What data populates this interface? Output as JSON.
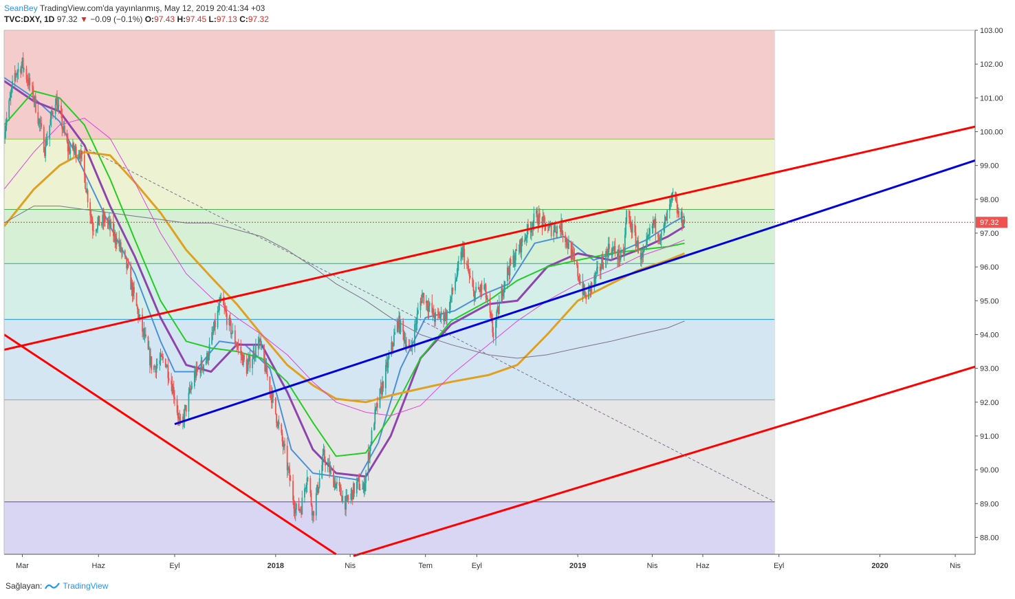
{
  "header": {
    "author": "SeanBey",
    "published": "TradingView.com'da yayınlanmış, May 12, 2019 20:41:34 +03",
    "symbol": "TVC:DXY, 1D",
    "last": "97.32",
    "down_arrow": "▼",
    "change": "−0.09 (−0.1%)",
    "o_label": "O:",
    "o_val": "97.43",
    "h_label": "H:",
    "h_val": "97.45",
    "l_label": "L:",
    "l_val": "97.13",
    "c_label": "C:",
    "c_val": "97.32"
  },
  "footer": {
    "provider_label": "Sağlayan:",
    "brand": "TradingView",
    "logo_icon": "tradingview-logo-icon"
  },
  "colors": {
    "bull": "#26a69a",
    "bear": "#ef5350",
    "trend_red": "#ff0000",
    "trend_blue": "#0000dd",
    "ma_blue": "#4a90d9",
    "ma_purple": "#8e44ad",
    "ma_green": "#22cc22",
    "ma_orange": "#e0a020",
    "ma_magenta": "#e040e0",
    "ma_gray": "#7d6f8a"
  },
  "chart_data": {
    "type": "candlestick",
    "symbol": "TVC:DXY",
    "interval": "1D",
    "ylim": [
      87.5,
      103.0
    ],
    "xlim": [
      "2017-02-07",
      "2020-04-25"
    ],
    "last_price": 97.32,
    "y_ticks": [
      "103.00",
      "102.00",
      "101.00",
      "100.00",
      "99.00",
      "98.00",
      "97.00",
      "96.00",
      "95.00",
      "94.00",
      "93.00",
      "92.00",
      "91.00",
      "90.00",
      "89.00",
      "88.00"
    ],
    "y_tick_values": [
      103,
      102,
      101,
      100,
      99,
      98,
      97,
      96,
      95,
      94,
      93,
      92,
      91,
      90,
      89,
      88
    ],
    "x_ticks": [
      {
        "label": "Mar",
        "date": "2017-03-01",
        "bold": false
      },
      {
        "label": "Haz",
        "date": "2017-06-01",
        "bold": false
      },
      {
        "label": "Eyl",
        "date": "2017-09-01",
        "bold": false
      },
      {
        "label": "2018",
        "date": "2018-01-01",
        "bold": true
      },
      {
        "label": "Nis",
        "date": "2018-04-01",
        "bold": false
      },
      {
        "label": "Tem",
        "date": "2018-07-01",
        "bold": false
      },
      {
        "label": "Eyl",
        "date": "2018-09-01",
        "bold": false
      },
      {
        "label": "2019",
        "date": "2019-01-01",
        "bold": true
      },
      {
        "label": "Nis",
        "date": "2019-04-01",
        "bold": false
      },
      {
        "label": "Haz",
        "date": "2019-06-01",
        "bold": false
      },
      {
        "label": "Eyl",
        "date": "2019-09-01",
        "bold": false
      },
      {
        "label": "2020",
        "date": "2020-01-01",
        "bold": true
      },
      {
        "label": "Nis",
        "date": "2020-04-01",
        "bold": false
      }
    ],
    "price_path": [
      [
        "2017-02-07",
        100.0
      ],
      [
        "2017-02-20",
        101.7
      ],
      [
        "2017-03-01",
        102.0
      ],
      [
        "2017-03-15",
        101.0
      ],
      [
        "2017-03-28",
        99.5
      ],
      [
        "2017-04-10",
        101.0
      ],
      [
        "2017-04-25",
        99.5
      ],
      [
        "2017-05-10",
        99.4
      ],
      [
        "2017-05-25",
        97.2
      ],
      [
        "2017-06-10",
        97.4
      ],
      [
        "2017-06-25",
        96.7
      ],
      [
        "2017-07-05",
        96.0
      ],
      [
        "2017-07-20",
        94.5
      ],
      [
        "2017-08-05",
        93.0
      ],
      [
        "2017-08-20",
        93.3
      ],
      [
        "2017-09-01",
        92.2
      ],
      [
        "2017-09-08",
        91.2
      ],
      [
        "2017-09-25",
        92.8
      ],
      [
        "2017-10-10",
        93.3
      ],
      [
        "2017-10-27",
        95.0
      ],
      [
        "2017-11-10",
        94.0
      ],
      [
        "2017-11-27",
        93.0
      ],
      [
        "2017-12-12",
        93.8
      ],
      [
        "2017-12-27",
        92.2
      ],
      [
        "2018-01-12",
        90.5
      ],
      [
        "2018-01-25",
        88.8
      ],
      [
        "2018-02-01",
        88.9
      ],
      [
        "2018-02-08",
        89.9
      ],
      [
        "2018-02-15",
        88.7
      ],
      [
        "2018-02-28",
        90.4
      ],
      [
        "2018-03-12",
        89.7
      ],
      [
        "2018-03-27",
        89.0
      ],
      [
        "2018-04-10",
        89.6
      ],
      [
        "2018-04-17",
        89.4
      ],
      [
        "2018-04-30",
        91.5
      ],
      [
        "2018-05-15",
        93.0
      ],
      [
        "2018-05-29",
        94.4
      ],
      [
        "2018-06-12",
        93.5
      ],
      [
        "2018-06-27",
        95.2
      ],
      [
        "2018-07-12",
        94.5
      ],
      [
        "2018-07-27",
        94.6
      ],
      [
        "2018-08-15",
        96.5
      ],
      [
        "2018-08-28",
        95.2
      ],
      [
        "2018-09-10",
        95.4
      ],
      [
        "2018-09-21",
        94.0
      ],
      [
        "2018-10-05",
        95.7
      ],
      [
        "2018-10-31",
        97.0
      ],
      [
        "2018-11-12",
        97.5
      ],
      [
        "2018-11-27",
        97.1
      ],
      [
        "2018-12-12",
        97.2
      ],
      [
        "2018-12-27",
        96.2
      ],
      [
        "2019-01-10",
        95.1
      ],
      [
        "2019-01-25",
        95.8
      ],
      [
        "2019-02-08",
        96.6
      ],
      [
        "2019-02-25",
        96.2
      ],
      [
        "2019-03-01",
        97.6
      ],
      [
        "2019-03-20",
        96.2
      ],
      [
        "2019-04-02",
        97.3
      ],
      [
        "2019-04-12",
        96.9
      ],
      [
        "2019-04-26",
        98.1
      ],
      [
        "2019-05-03",
        97.5
      ],
      [
        "2019-05-10",
        97.32
      ]
    ],
    "moving_averages": [
      {
        "color_key": "ma_blue",
        "width": 2,
        "points": [
          [
            "2017-02-07",
            101.6
          ],
          [
            "2017-03-15",
            101.0
          ],
          [
            "2017-04-15",
            100.3
          ],
          [
            "2017-05-15",
            98.8
          ],
          [
            "2017-06-15",
            97.2
          ],
          [
            "2017-07-15",
            95.8
          ],
          [
            "2017-08-15",
            93.8
          ],
          [
            "2017-09-01",
            92.9
          ],
          [
            "2017-09-25",
            92.9
          ],
          [
            "2017-10-25",
            93.8
          ],
          [
            "2017-11-25",
            93.7
          ],
          [
            "2017-12-25",
            93.0
          ],
          [
            "2018-01-20",
            90.6
          ],
          [
            "2018-02-15",
            89.9
          ],
          [
            "2018-03-15",
            89.8
          ],
          [
            "2018-04-10",
            89.7
          ],
          [
            "2018-05-05",
            90.8
          ],
          [
            "2018-06-01",
            93.0
          ],
          [
            "2018-07-01",
            94.5
          ],
          [
            "2018-08-05",
            94.7
          ],
          [
            "2018-09-10",
            95.2
          ],
          [
            "2018-10-10",
            95.5
          ],
          [
            "2018-11-10",
            96.7
          ],
          [
            "2018-12-15",
            96.9
          ],
          [
            "2019-01-20",
            96.2
          ],
          [
            "2019-02-25",
            96.5
          ],
          [
            "2019-03-25",
            96.8
          ],
          [
            "2019-04-25",
            97.3
          ],
          [
            "2019-05-10",
            97.5
          ]
        ]
      },
      {
        "color_key": "ma_purple",
        "width": 3,
        "points": [
          [
            "2017-02-07",
            101.5
          ],
          [
            "2017-03-15",
            100.9
          ],
          [
            "2017-04-15",
            100.6
          ],
          [
            "2017-05-15",
            99.6
          ],
          [
            "2017-06-15",
            97.8
          ],
          [
            "2017-07-15",
            96.3
          ],
          [
            "2017-08-15",
            94.5
          ],
          [
            "2017-09-15",
            93.1
          ],
          [
            "2017-10-15",
            92.9
          ],
          [
            "2017-11-15",
            93.7
          ],
          [
            "2017-12-15",
            93.7
          ],
          [
            "2018-01-15",
            92.3
          ],
          [
            "2018-02-15",
            90.6
          ],
          [
            "2018-03-15",
            89.9
          ],
          [
            "2018-04-20",
            89.8
          ],
          [
            "2018-05-20",
            91.0
          ],
          [
            "2018-06-25",
            93.3
          ],
          [
            "2018-08-01",
            94.3
          ],
          [
            "2018-09-15",
            94.9
          ],
          [
            "2018-10-20",
            95.0
          ],
          [
            "2018-11-25",
            96.0
          ],
          [
            "2019-01-01",
            96.4
          ],
          [
            "2019-02-10",
            96.2
          ],
          [
            "2019-03-15",
            96.5
          ],
          [
            "2019-04-20",
            96.9
          ],
          [
            "2019-05-10",
            97.2
          ]
        ]
      },
      {
        "color_key": "ma_green",
        "width": 2,
        "points": [
          [
            "2017-02-07",
            100.2
          ],
          [
            "2017-03-15",
            101.2
          ],
          [
            "2017-04-15",
            101.0
          ],
          [
            "2017-05-15",
            100.2
          ],
          [
            "2017-06-15",
            98.6
          ],
          [
            "2017-07-15",
            96.8
          ],
          [
            "2017-08-15",
            95.0
          ],
          [
            "2017-09-15",
            93.8
          ],
          [
            "2017-10-15",
            93.6
          ],
          [
            "2017-11-15",
            93.5
          ],
          [
            "2017-12-15",
            93.3
          ],
          [
            "2018-01-15",
            92.6
          ],
          [
            "2018-02-15",
            91.4
          ],
          [
            "2018-03-15",
            90.4
          ],
          [
            "2018-04-20",
            90.5
          ],
          [
            "2018-05-20",
            91.6
          ],
          [
            "2018-06-25",
            93.3
          ],
          [
            "2018-08-01",
            94.4
          ],
          [
            "2018-09-15",
            95.0
          ],
          [
            "2018-10-20",
            95.6
          ],
          [
            "2018-11-25",
            96.0
          ],
          [
            "2019-01-01",
            96.2
          ],
          [
            "2019-02-10",
            96.4
          ],
          [
            "2019-03-15",
            96.5
          ],
          [
            "2019-04-20",
            96.6
          ],
          [
            "2019-05-10",
            96.7
          ]
        ]
      },
      {
        "color_key": "ma_orange",
        "width": 3,
        "points": [
          [
            "2017-02-07",
            97.2
          ],
          [
            "2017-03-15",
            98.3
          ],
          [
            "2017-04-15",
            99.0
          ],
          [
            "2017-05-15",
            99.4
          ],
          [
            "2017-06-15",
            99.3
          ],
          [
            "2017-07-15",
            98.5
          ],
          [
            "2017-08-15",
            97.6
          ],
          [
            "2017-09-15",
            96.5
          ],
          [
            "2017-10-15",
            95.7
          ],
          [
            "2017-11-15",
            94.9
          ],
          [
            "2017-12-15",
            94.0
          ],
          [
            "2018-01-15",
            93.1
          ],
          [
            "2018-02-15",
            92.5
          ],
          [
            "2018-03-15",
            92.1
          ],
          [
            "2018-04-20",
            92.0
          ],
          [
            "2018-05-20",
            92.2
          ],
          [
            "2018-06-25",
            92.4
          ],
          [
            "2018-08-01",
            92.6
          ],
          [
            "2018-09-15",
            92.8
          ],
          [
            "2018-10-20",
            93.1
          ],
          [
            "2018-11-25",
            94.0
          ],
          [
            "2019-01-01",
            95.0
          ],
          [
            "2019-02-10",
            95.5
          ],
          [
            "2019-03-15",
            95.9
          ],
          [
            "2019-04-20",
            96.2
          ],
          [
            "2019-05-10",
            96.4
          ]
        ]
      },
      {
        "color_key": "ma_magenta",
        "width": 1,
        "points": [
          [
            "2017-02-07",
            98.3
          ],
          [
            "2017-03-15",
            99.4
          ],
          [
            "2017-04-15",
            100.2
          ],
          [
            "2017-05-15",
            100.4
          ],
          [
            "2017-06-15",
            99.8
          ],
          [
            "2017-07-15",
            98.5
          ],
          [
            "2017-08-15",
            97.0
          ],
          [
            "2017-09-15",
            95.8
          ],
          [
            "2017-10-15",
            95.1
          ],
          [
            "2017-11-15",
            94.5
          ],
          [
            "2017-12-15",
            94.0
          ],
          [
            "2018-01-15",
            93.4
          ],
          [
            "2018-02-15",
            92.6
          ],
          [
            "2018-03-15",
            92.0
          ],
          [
            "2018-04-20",
            91.7
          ],
          [
            "2018-05-20",
            91.6
          ],
          [
            "2018-06-25",
            91.9
          ],
          [
            "2018-08-01",
            92.8
          ],
          [
            "2018-09-15",
            93.7
          ],
          [
            "2018-10-20",
            94.4
          ],
          [
            "2018-11-25",
            95.0
          ],
          [
            "2019-01-01",
            95.5
          ],
          [
            "2019-02-10",
            95.9
          ],
          [
            "2019-03-15",
            96.3
          ],
          [
            "2019-04-20",
            96.6
          ],
          [
            "2019-05-10",
            96.8
          ]
        ]
      },
      {
        "color_key": "ma_gray",
        "width": 1,
        "points": [
          [
            "2017-02-07",
            97.3
          ],
          [
            "2017-03-15",
            97.8
          ],
          [
            "2017-04-15",
            97.8
          ],
          [
            "2017-05-15",
            97.7
          ],
          [
            "2017-06-15",
            97.6
          ],
          [
            "2017-07-15",
            97.5
          ],
          [
            "2017-08-15",
            97.4
          ],
          [
            "2017-09-15",
            97.3
          ],
          [
            "2017-10-15",
            97.3
          ],
          [
            "2017-11-15",
            97.1
          ],
          [
            "2017-12-15",
            96.9
          ],
          [
            "2018-01-15",
            96.5
          ],
          [
            "2018-02-15",
            96.0
          ],
          [
            "2018-03-15",
            95.5
          ],
          [
            "2018-04-20",
            95.0
          ],
          [
            "2018-05-20",
            94.5
          ],
          [
            "2018-06-25",
            94.0
          ],
          [
            "2018-08-01",
            93.7
          ],
          [
            "2018-09-15",
            93.4
          ],
          [
            "2018-10-20",
            93.3
          ],
          [
            "2018-11-25",
            93.4
          ],
          [
            "2019-01-01",
            93.6
          ],
          [
            "2019-02-10",
            93.8
          ],
          [
            "2019-03-15",
            94.0
          ],
          [
            "2019-04-20",
            94.2
          ],
          [
            "2019-05-10",
            94.4
          ]
        ]
      }
    ],
    "fib_bands": [
      {
        "from": 99.78,
        "to": 103.0,
        "color": "#f4cccc",
        "line": "#c0392b"
      },
      {
        "from": 97.7,
        "to": 99.78,
        "color": "#edf2d2",
        "line": "#8bc34a"
      },
      {
        "from": 96.1,
        "to": 97.7,
        "color": "#d5f0d5",
        "line": "#4caf50"
      },
      {
        "from": 94.45,
        "to": 96.1,
        "color": "#d3efe8",
        "line": "#26a69a"
      },
      {
        "from": 92.07,
        "to": 94.45,
        "color": "#d5e6f3",
        "line": "#2196f3"
      },
      {
        "from": 89.05,
        "to": 92.07,
        "color": "#e6e6e6",
        "line": "#9e9e9e"
      },
      {
        "from": 87.5,
        "to": 89.05,
        "color": "#d8d6f3",
        "line": "#673ab7"
      }
    ],
    "fib_end_date": "2019-08-27",
    "trend_lines": [
      {
        "color_key": "trend_red",
        "width": 3,
        "from": [
          "2017-02-07",
          93.55
        ],
        "to": [
          "2020-04-25",
          100.15
        ]
      },
      {
        "color_key": "trend_red",
        "width": 3,
        "from": [
          "2018-04-05",
          87.45
        ],
        "to": [
          "2020-04-25",
          93.05
        ]
      },
      {
        "color_key": "trend_red",
        "width": 3,
        "from": [
          "2017-02-07",
          94.0
        ],
        "to": [
          "2018-03-15",
          87.5
        ]
      },
      {
        "color_key": "trend_blue",
        "width": 3,
        "from": [
          "2017-09-01",
          91.35
        ],
        "to": [
          "2020-04-25",
          99.15
        ]
      },
      {
        "color_key": "ma_gray",
        "width": 1,
        "dashed": true,
        "from": [
          "2017-05-10",
          99.6
        ],
        "to": [
          "2019-08-27",
          89.05
        ]
      }
    ]
  }
}
